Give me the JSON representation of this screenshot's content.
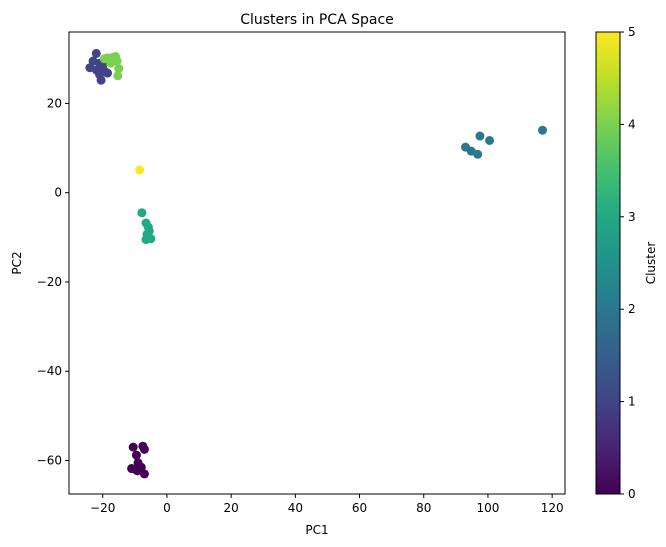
{
  "chart_data": {
    "type": "scatter",
    "title": "Clusters in PCA Space",
    "xlabel": "PC1",
    "ylabel": "PC2",
    "xlim": [
      -30.5,
      124
    ],
    "ylim": [
      -67.5,
      36
    ],
    "xticks": [
      -20,
      0,
      20,
      40,
      60,
      80,
      100,
      120
    ],
    "yticks": [
      -60,
      -40,
      -20,
      0,
      20
    ],
    "grid": false,
    "colorbar": {
      "label": "Cluster",
      "range": [
        0,
        5
      ],
      "ticks": [
        0,
        1,
        2,
        3,
        4,
        5
      ],
      "colormap": "viridis"
    },
    "points": [
      {
        "x": -22,
        "y": 31.2,
        "cluster": 1
      },
      {
        "x": -23,
        "y": 29.5,
        "cluster": 1
      },
      {
        "x": -21,
        "y": 29.0,
        "cluster": 1
      },
      {
        "x": -24,
        "y": 28.0,
        "cluster": 1
      },
      {
        "x": -22,
        "y": 27.5,
        "cluster": 1
      },
      {
        "x": -20,
        "y": 28.0,
        "cluster": 1
      },
      {
        "x": -21,
        "y": 26.5,
        "cluster": 1
      },
      {
        "x": -19,
        "y": 27.0,
        "cluster": 1
      },
      {
        "x": -20.5,
        "y": 25.2,
        "cluster": 1
      },
      {
        "x": -18.5,
        "y": 26.8,
        "cluster": 1
      },
      {
        "x": -19.5,
        "y": 29.5,
        "cluster": 1
      },
      {
        "x": -19.5,
        "y": 30.0,
        "cluster": 4
      },
      {
        "x": -18.5,
        "y": 30.2,
        "cluster": 4
      },
      {
        "x": -17.0,
        "y": 30.3,
        "cluster": 4
      },
      {
        "x": -16.0,
        "y": 30.5,
        "cluster": 4
      },
      {
        "x": -15.5,
        "y": 29.5,
        "cluster": 4
      },
      {
        "x": -17.5,
        "y": 29.0,
        "cluster": 4
      },
      {
        "x": -15.0,
        "y": 27.8,
        "cluster": 4
      },
      {
        "x": -15.3,
        "y": 26.2,
        "cluster": 4
      },
      {
        "x": -8.5,
        "y": 5.1,
        "cluster": 5
      },
      {
        "x": -7.8,
        "y": -4.5,
        "cluster": 3
      },
      {
        "x": -6.5,
        "y": -6.8,
        "cluster": 3
      },
      {
        "x": -5.8,
        "y": -7.7,
        "cluster": 3
      },
      {
        "x": -5.5,
        "y": -8.6,
        "cluster": 3
      },
      {
        "x": -6.2,
        "y": -9.3,
        "cluster": 3
      },
      {
        "x": -5.0,
        "y": -10.3,
        "cluster": 3
      },
      {
        "x": -6.5,
        "y": -10.5,
        "cluster": 3
      },
      {
        "x": 93.0,
        "y": 10.2,
        "cluster": 2
      },
      {
        "x": 94.8,
        "y": 9.3,
        "cluster": 2
      },
      {
        "x": 96.8,
        "y": 8.6,
        "cluster": 2
      },
      {
        "x": 97.5,
        "y": 12.7,
        "cluster": 2
      },
      {
        "x": 100.5,
        "y": 11.7,
        "cluster": 2
      },
      {
        "x": 117.0,
        "y": 14.0,
        "cluster": 2
      },
      {
        "x": -10.5,
        "y": -57.0,
        "cluster": 0
      },
      {
        "x": -7.5,
        "y": -56.8,
        "cluster": 0
      },
      {
        "x": -7.0,
        "y": -57.5,
        "cluster": 0
      },
      {
        "x": -9.5,
        "y": -58.8,
        "cluster": 0
      },
      {
        "x": -9.0,
        "y": -60.5,
        "cluster": 0
      },
      {
        "x": -11.0,
        "y": -61.8,
        "cluster": 0
      },
      {
        "x": -9.8,
        "y": -62.0,
        "cluster": 0
      },
      {
        "x": -8.0,
        "y": -61.5,
        "cluster": 0
      },
      {
        "x": -9.2,
        "y": -62.3,
        "cluster": 0
      },
      {
        "x": -7.0,
        "y": -63.0,
        "cluster": 0
      }
    ]
  }
}
